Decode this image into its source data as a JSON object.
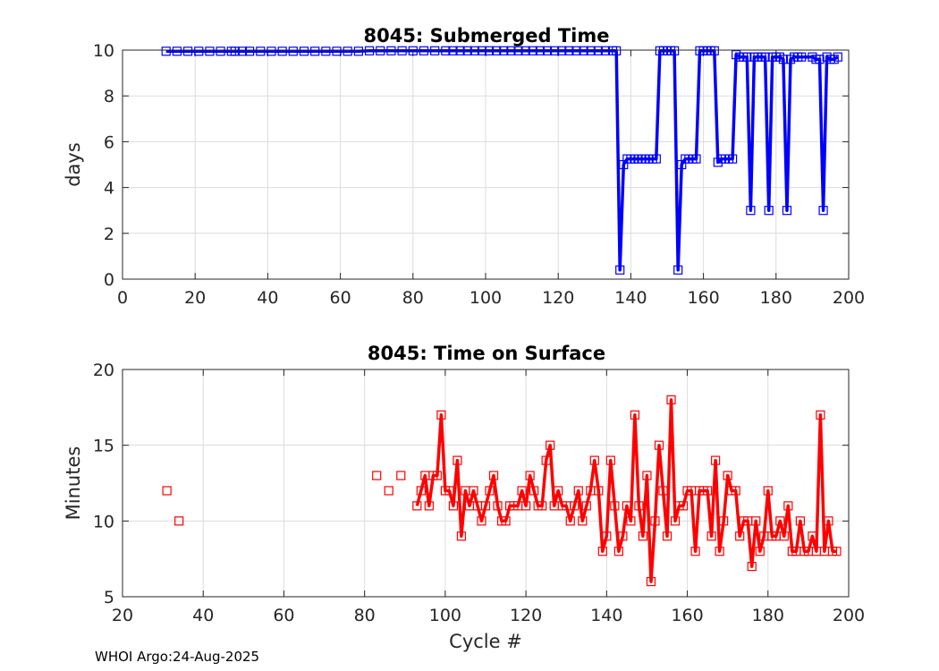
{
  "footer": "WHOI Argo:24-Aug-2025",
  "chart_data": [
    {
      "type": "line",
      "title": "8045: Submerged Time",
      "xlabel": "",
      "ylabel": "days",
      "xlim": [
        0,
        200
      ],
      "ylim": [
        0,
        10
      ],
      "xticks": [
        "0",
        "20",
        "40",
        "60",
        "80",
        "100",
        "120",
        "140",
        "160",
        "180",
        "200"
      ],
      "yticks": [
        "0",
        "2",
        "4",
        "6",
        "8",
        "10"
      ],
      "grid": true,
      "color": "#0000ff",
      "series": [
        {
          "name": "submerged time",
          "x": [
            12,
            15,
            18,
            21,
            24,
            27,
            30,
            31,
            33,
            35,
            38,
            41,
            44,
            47,
            50,
            53,
            56,
            59,
            62,
            65,
            68,
            71,
            74,
            77,
            80,
            83,
            86,
            89,
            91,
            93,
            95,
            97,
            99,
            101,
            103,
            105,
            107,
            109,
            111,
            113,
            115,
            117,
            119,
            121,
            123,
            125,
            127,
            129,
            131,
            133,
            135,
            136,
            137,
            138,
            139,
            140,
            141,
            142,
            143,
            144,
            145,
            146,
            147,
            148,
            149,
            150,
            151,
            152,
            153,
            154,
            155,
            156,
            157,
            158,
            159,
            160,
            161,
            162,
            163,
            164,
            165,
            166,
            167,
            168,
            169,
            170,
            171,
            172,
            173,
            174,
            175,
            176,
            177,
            178,
            179,
            180,
            181,
            182,
            183,
            184,
            185,
            186,
            187,
            190,
            191,
            192,
            193,
            194,
            195,
            196,
            197
          ],
          "y": [
            9.95,
            9.95,
            9.95,
            9.95,
            9.95,
            9.95,
            9.95,
            9.95,
            9.95,
            9.95,
            9.95,
            9.95,
            9.95,
            9.95,
            9.95,
            9.95,
            9.95,
            9.95,
            9.95,
            9.95,
            9.97,
            9.97,
            9.97,
            9.97,
            9.97,
            9.97,
            9.97,
            9.97,
            9.97,
            9.97,
            9.97,
            9.97,
            9.97,
            9.97,
            9.97,
            9.97,
            9.97,
            9.97,
            9.97,
            9.97,
            9.97,
            9.97,
            9.97,
            9.97,
            9.97,
            9.97,
            9.97,
            9.97,
            9.97,
            9.97,
            9.97,
            9.97,
            0.4,
            5.0,
            5.25,
            5.25,
            5.25,
            5.25,
            5.25,
            5.25,
            5.25,
            5.25,
            5.25,
            9.97,
            9.97,
            9.97,
            9.97,
            9.97,
            0.4,
            5.0,
            5.25,
            5.25,
            5.25,
            5.25,
            9.97,
            9.97,
            9.97,
            9.97,
            9.97,
            5.1,
            5.25,
            5.25,
            5.25,
            5.25,
            9.8,
            9.7,
            9.7,
            9.7,
            3.0,
            9.7,
            9.7,
            9.7,
            9.7,
            3.0,
            9.7,
            9.7,
            9.7,
            9.6,
            3.0,
            9.6,
            9.7,
            9.7,
            9.7,
            9.7,
            9.6,
            9.6,
            3.0,
            9.7,
            9.6,
            9.6,
            9.7
          ]
        }
      ]
    },
    {
      "type": "line",
      "title": "8045: Time on Surface",
      "xlabel": "Cycle #",
      "ylabel": "Minutes",
      "xlim": [
        20,
        200
      ],
      "ylim": [
        5,
        20
      ],
      "xticks": [
        "20",
        "40",
        "60",
        "80",
        "100",
        "120",
        "140",
        "160",
        "180",
        "200"
      ],
      "yticks": [
        "5",
        "10",
        "15",
        "20"
      ],
      "grid": true,
      "color": "#ff0000",
      "series": [
        {
          "name": "isolated points",
          "x": [
            31,
            34,
            83,
            86,
            89
          ],
          "y": [
            12,
            10,
            13,
            12,
            13
          ]
        },
        {
          "name": "time on surface",
          "x": [
            93,
            94,
            95,
            96,
            97,
            98,
            99,
            100,
            101,
            102,
            103,
            104,
            105,
            106,
            107,
            108,
            109,
            110,
            111,
            112,
            113,
            114,
            115,
            116,
            117,
            118,
            119,
            120,
            121,
            122,
            123,
            124,
            125,
            126,
            127,
            128,
            129,
            130,
            131,
            132,
            133,
            134,
            135,
            136,
            137,
            138,
            139,
            140,
            141,
            142,
            143,
            144,
            145,
            146,
            147,
            148,
            149,
            150,
            151,
            152,
            153,
            154,
            155,
            156,
            157,
            158,
            159,
            160,
            161,
            162,
            163,
            164,
            165,
            166,
            167,
            168,
            169,
            170,
            171,
            172,
            173,
            174,
            175,
            176,
            177,
            178,
            179,
            180,
            181,
            182,
            183,
            184,
            185,
            186,
            187,
            188,
            189,
            190,
            191,
            192,
            193,
            194,
            195,
            196,
            197
          ],
          "y": [
            11,
            12,
            13,
            11,
            13,
            13,
            17,
            12,
            12,
            11,
            14,
            9,
            12,
            11,
            12,
            11,
            10,
            11,
            12,
            13,
            11,
            10,
            10,
            11,
            11,
            11,
            12,
            11,
            13,
            12,
            11,
            11,
            14,
            15,
            11,
            12,
            11,
            11,
            10,
            11,
            12,
            10,
            11,
            12,
            14,
            12,
            8,
            9,
            14,
            11,
            8,
            9,
            11,
            10,
            17,
            11,
            9,
            13,
            6,
            10,
            15,
            12,
            9,
            18,
            10,
            11,
            11,
            12,
            12,
            8,
            12,
            12,
            12,
            9,
            14,
            8,
            10,
            13,
            12,
            12,
            9,
            10,
            10,
            7,
            10,
            8,
            9,
            12,
            9,
            9,
            10,
            9,
            11,
            8,
            8,
            10,
            8,
            8,
            9,
            8,
            17,
            8,
            10,
            8,
            8
          ]
        }
      ]
    }
  ]
}
